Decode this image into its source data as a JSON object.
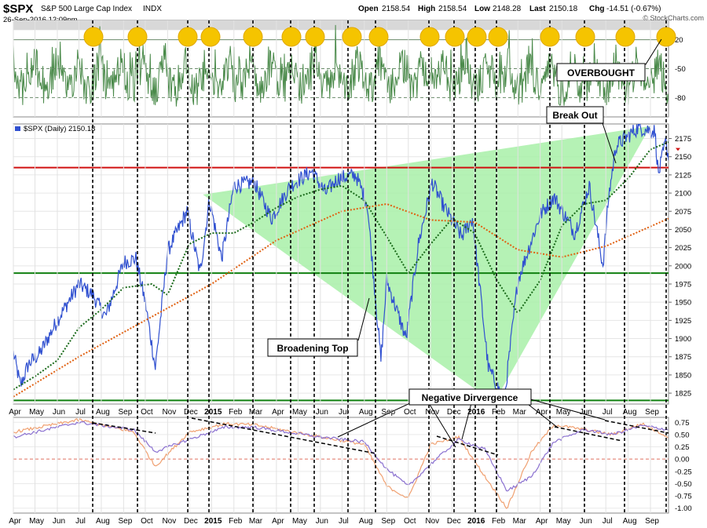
{
  "header": {
    "symbol": "$SPX",
    "name": "S&P 500 Large Cap Index",
    "exchange": "INDX",
    "date": "26-Sep-2016 12:09pm",
    "open_label": "Open",
    "open": "2158.54",
    "high_label": "High",
    "high": "2158.54",
    "low_label": "Low",
    "low": "2148.28",
    "last_label": "Last",
    "last": "2150.18",
    "chg_label": "Chg",
    "chg": "-14.51 (-0.67%)",
    "watermark": "© StockCharts.com"
  },
  "legend": {
    "main": "$SPX (Daily) 2150.18"
  },
  "annotations": {
    "overbought": "OVERBOUGHT",
    "breakout": "Break Out",
    "broadening": "Broadening Top",
    "negdiv": "Negative Dirvergence"
  },
  "colors": {
    "price": "#3050d0",
    "ma50": "#1a6a1a",
    "ma200": "#e06010",
    "resistance": "#d01010",
    "support": "#108010",
    "triangle": "#a8f0a8",
    "marker": "#f5c400",
    "osc": "#4a8a4a",
    "macd_a": "#f0a070",
    "macd_b": "#8a70d0"
  },
  "chart_data": {
    "type": "line",
    "title": "$SPX S&P 500 Large Cap Index INDX",
    "x_axis": {
      "labels": [
        "Apr",
        "May",
        "Jun",
        "Jul",
        "Aug",
        "Sep",
        "Oct",
        "Nov",
        "Dec",
        "2015",
        "Feb",
        "Mar",
        "Apr",
        "May",
        "Jun",
        "Jul",
        "Aug",
        "Sep",
        "Oct",
        "Nov",
        "Dec",
        "2016",
        "Feb",
        "Mar",
        "Apr",
        "May",
        "Jun",
        "Jul",
        "Aug",
        "Sep"
      ],
      "range": [
        "2014-04-01",
        "2016-09-26"
      ]
    },
    "y_axis": {
      "ticks": [
        1825,
        1850,
        1875,
        1900,
        1925,
        1950,
        1975,
        2000,
        2025,
        2050,
        2075,
        2100,
        2125,
        2150,
        2175
      ],
      "range": [
        1810,
        2195
      ]
    },
    "series": [
      {
        "name": "$SPX (Daily)",
        "x": [
          "2014-04-01",
          "2014-04-11",
          "2014-04-22",
          "2014-05-08",
          "2014-06-01",
          "2014-07-01",
          "2014-07-20",
          "2014-08-07",
          "2014-09-01",
          "2014-09-18",
          "2014-10-01",
          "2014-10-15",
          "2014-11-01",
          "2014-11-28",
          "2014-12-16",
          "2014-12-29",
          "2015-01-15",
          "2015-02-01",
          "2015-03-01",
          "2015-03-25",
          "2015-04-20",
          "2015-05-20",
          "2015-06-08",
          "2015-06-25",
          "2015-07-20",
          "2015-08-05",
          "2015-08-24",
          "2015-09-01",
          "2015-09-28",
          "2015-10-15",
          "2015-11-03",
          "2015-11-20",
          "2015-12-14",
          "2015-12-29",
          "2016-01-20",
          "2016-02-11",
          "2016-03-01",
          "2016-04-01",
          "2016-04-20",
          "2016-05-19",
          "2016-06-08",
          "2016-06-27",
          "2016-07-05",
          "2016-07-15",
          "2016-08-15",
          "2016-09-07",
          "2016-09-12",
          "2016-09-22",
          "2016-09-26"
        ],
        "y": [
          1880,
          1835,
          1865,
          1880,
          1925,
          1975,
          1960,
          1930,
          2005,
          2010,
          1950,
          1860,
          2020,
          2075,
          1990,
          2090,
          2010,
          2110,
          2115,
          2065,
          2110,
          2130,
          2100,
          2120,
          2125,
          2085,
          1870,
          1980,
          1900,
          2030,
          2115,
          2080,
          2040,
          2065,
          1860,
          1815,
          1980,
          2070,
          2095,
          2045,
          2110,
          2000,
          2095,
          2165,
          2190,
          2185,
          2125,
          2170,
          2150
        ]
      },
      {
        "name": "50-day MA",
        "x": [
          "2014-04-01",
          "2014-05-01",
          "2014-06-01",
          "2014-07-01",
          "2014-08-01",
          "2014-09-01",
          "2014-10-10",
          "2014-11-01",
          "2014-12-01",
          "2015-01-01",
          "2015-02-01",
          "2015-03-01",
          "2015-04-01",
          "2015-05-01",
          "2015-06-01",
          "2015-07-01",
          "2015-08-01",
          "2015-09-01",
          "2015-10-01",
          "2015-11-01",
          "2015-12-01",
          "2016-01-01",
          "2016-02-01",
          "2016-03-01",
          "2016-04-01",
          "2016-05-01",
          "2016-06-01",
          "2016-07-01",
          "2016-08-01",
          "2016-09-01",
          "2016-09-26"
        ],
        "y": [
          1830,
          1848,
          1870,
          1915,
          1940,
          1970,
          1975,
          1960,
          2030,
          2045,
          2045,
          2060,
          2080,
          2095,
          2105,
          2110,
          2090,
          2040,
          1990,
          2030,
          2065,
          2045,
          1980,
          1935,
          1980,
          2055,
          2085,
          2090,
          2120,
          2160,
          2170
        ]
      },
      {
        "name": "200-day MA",
        "x": [
          "2014-04-01",
          "2014-07-01",
          "2014-10-01",
          "2015-01-01",
          "2015-04-01",
          "2015-07-01",
          "2015-09-01",
          "2015-11-01",
          "2016-01-01",
          "2016-03-01",
          "2016-05-01",
          "2016-07-01",
          "2016-09-26"
        ],
        "y": [
          1820,
          1875,
          1925,
          1975,
          2035,
          2075,
          2085,
          2063,
          2060,
          2022,
          2012,
          2027,
          2065
        ]
      }
    ],
    "levels": [
      {
        "label": "resistance",
        "value": 2135
      },
      {
        "label": "support",
        "value": 1990
      },
      {
        "label": "support",
        "value": 1815
      }
    ],
    "panels": [
      {
        "name": "oscillator",
        "ticks": [
          20,
          -50,
          -80
        ],
        "range": [
          -100,
          0
        ]
      },
      {
        "name": "momentum",
        "ticks": [
          0.75,
          0.5,
          0.25,
          0.0,
          -0.25,
          -0.5,
          -0.75,
          -1.0
        ],
        "range": [
          -1.1,
          0.85
        ]
      }
    ]
  }
}
